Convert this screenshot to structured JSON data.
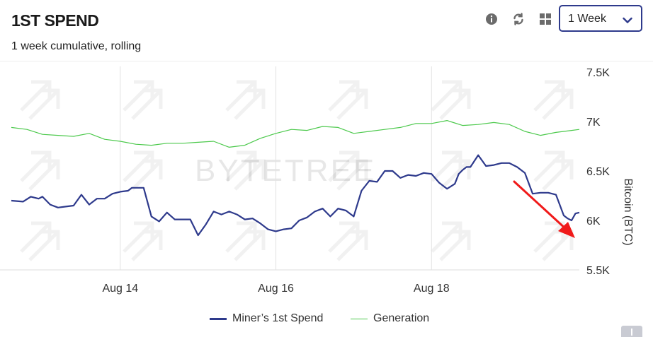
{
  "header": {
    "title": "1ST SPEND",
    "subtitle": "1 week cumulative, rolling",
    "tools": [
      {
        "name": "info-icon"
      },
      {
        "name": "refresh-icon"
      },
      {
        "name": "grid-icon"
      }
    ],
    "period_select": {
      "value": "1 Week"
    }
  },
  "watermark": "BYTETREE",
  "legend": [
    {
      "label": "Miner’s 1st Spend",
      "color": "#2e3a8c"
    },
    {
      "label": "Generation",
      "color": "#4cc94c"
    }
  ],
  "annotation": {
    "type": "arrow",
    "color": "#f01a1a"
  },
  "chart_data": {
    "type": "line",
    "title": "1ST SPEND",
    "subtitle": "1 week cumulative, rolling",
    "xlabel": "",
    "ylabel": "Bitcoin (BTC)",
    "x_ticks": [
      "Aug 14",
      "Aug 16",
      "Aug 18"
    ],
    "x_tick_positions": [
      14,
      16,
      18
    ],
    "xlim": [
      12.6,
      19.9
    ],
    "y_ticks": [
      "7.5K",
      "7K",
      "6.5K",
      "6K",
      "5.5K"
    ],
    "y_tick_values": [
      7500,
      7000,
      6500,
      6000,
      5500
    ],
    "ylim": [
      5500,
      7500
    ],
    "grid": "vertical",
    "legend_position": "bottom-center",
    "series": [
      {
        "name": "Miner’s 1st Spend",
        "color": "#2e3a8c",
        "x": [
          12.6,
          12.75,
          12.85,
          12.95,
          13.0,
          13.1,
          13.2,
          13.3,
          13.4,
          13.5,
          13.6,
          13.7,
          13.8,
          13.9,
          14.0,
          14.1,
          14.15,
          14.3,
          14.4,
          14.5,
          14.6,
          14.7,
          14.9,
          15.0,
          15.1,
          15.2,
          15.3,
          15.4,
          15.5,
          15.6,
          15.7,
          15.8,
          15.9,
          16.0,
          16.1,
          16.2,
          16.3,
          16.4,
          16.5,
          16.6,
          16.7,
          16.8,
          16.9,
          17.0,
          17.1,
          17.2,
          17.3,
          17.4,
          17.5,
          17.6,
          17.7,
          17.8,
          17.9,
          18.0,
          18.1,
          18.2,
          18.3,
          18.35,
          18.4,
          18.45,
          18.5,
          18.6,
          18.7,
          18.8,
          18.9,
          19.0,
          19.05,
          19.1,
          19.2,
          19.3,
          19.4,
          19.5,
          19.6,
          19.7,
          19.75,
          19.8,
          19.85,
          19.9
        ],
        "y": [
          6200,
          6190,
          6240,
          6220,
          6240,
          6160,
          6130,
          6140,
          6150,
          6260,
          6160,
          6220,
          6220,
          6270,
          6290,
          6300,
          6330,
          6330,
          6040,
          5990,
          6080,
          6010,
          6010,
          5850,
          5960,
          6090,
          6060,
          6090,
          6060,
          6010,
          6020,
          5970,
          5910,
          5890,
          5910,
          5920,
          6000,
          6030,
          6090,
          6120,
          6040,
          6120,
          6100,
          6040,
          6300,
          6400,
          6390,
          6500,
          6500,
          6430,
          6460,
          6450,
          6480,
          6470,
          6380,
          6320,
          6370,
          6470,
          6510,
          6540,
          6540,
          6660,
          6550,
          6560,
          6580,
          6580,
          6560,
          6540,
          6480,
          6270,
          6280,
          6280,
          6260,
          6050,
          6020,
          6000,
          6070,
          6080
        ]
      },
      {
        "name": "Generation",
        "color": "#4cc94c",
        "x": [
          12.6,
          12.8,
          13.0,
          13.2,
          13.4,
          13.6,
          13.8,
          14.0,
          14.2,
          14.4,
          14.6,
          14.8,
          15.0,
          15.2,
          15.4,
          15.6,
          15.8,
          16.0,
          16.2,
          16.4,
          16.6,
          16.8,
          17.0,
          17.2,
          17.4,
          17.6,
          17.8,
          18.0,
          18.2,
          18.4,
          18.6,
          18.8,
          19.0,
          19.2,
          19.4,
          19.6,
          19.8,
          19.9
        ],
        "y": [
          6940,
          6920,
          6870,
          6860,
          6850,
          6880,
          6820,
          6800,
          6770,
          6760,
          6780,
          6780,
          6790,
          6800,
          6740,
          6760,
          6830,
          6880,
          6920,
          6910,
          6950,
          6940,
          6880,
          6900,
          6920,
          6940,
          6980,
          6980,
          7010,
          6960,
          6970,
          6990,
          6970,
          6900,
          6860,
          6890,
          6910,
          6920
        ]
      }
    ]
  }
}
